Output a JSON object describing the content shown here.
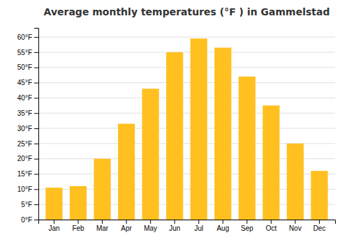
{
  "chart_data": {
    "type": "bar",
    "title": "Average monthly temperatures (°F ) in Gammelstad",
    "categories": [
      "Jan",
      "Feb",
      "Mar",
      "Apr",
      "May",
      "Jun",
      "Jul",
      "Aug",
      "Sep",
      "Oct",
      "Nov",
      "Dec"
    ],
    "values": [
      10.5,
      11.0,
      20.0,
      31.5,
      43.0,
      55.0,
      59.5,
      56.5,
      47.0,
      37.5,
      25.0,
      16.0
    ],
    "color": "#FFC020",
    "ylim": [
      0,
      63
    ],
    "yticks": [
      {
        "value": 0,
        "label": "0°F"
      },
      {
        "value": 5,
        "label": "5°F"
      },
      {
        "value": 10,
        "label": "10°F"
      },
      {
        "value": 15,
        "label": "15°F"
      },
      {
        "value": 20,
        "label": "20°F"
      },
      {
        "value": 25,
        "label": "25°F"
      },
      {
        "value": 30,
        "label": "30°F"
      },
      {
        "value": 35,
        "label": "35°F"
      },
      {
        "value": 40,
        "label": "40°F"
      },
      {
        "value": 45,
        "label": "45°F"
      },
      {
        "value": 50,
        "label": "50°F"
      },
      {
        "value": 55,
        "label": "55°F"
      },
      {
        "value": 60,
        "label": "60°F"
      }
    ],
    "grid": true
  }
}
